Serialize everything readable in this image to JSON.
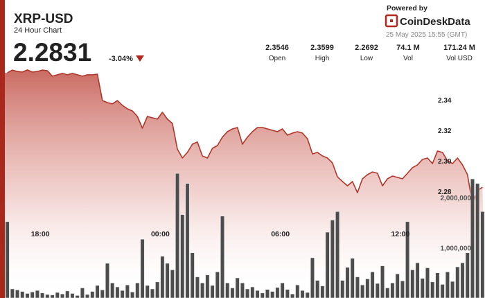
{
  "header": {
    "symbol": "XRP-USD",
    "subtitle": "24 Hour Chart",
    "price": "2.2831",
    "change": "-3.04%",
    "powered_by": "Powered by",
    "brand": "CoinDeskData",
    "timestamp": "25 May 2025 15:55 (GMT)",
    "stats": [
      {
        "value": "2.3546",
        "label": "Open"
      },
      {
        "value": "2.3599",
        "label": "High"
      },
      {
        "value": "2.2692",
        "label": "Low"
      },
      {
        "value": "74.1 M",
        "label": "Vol"
      },
      {
        "value": "171.24 M",
        "label": "Vol USD"
      }
    ]
  },
  "chart_data": {
    "type": "line",
    "categories": [
      null,
      null,
      null,
      null,
      null,
      null,
      null,
      "18:00",
      null,
      null,
      null,
      null,
      null,
      null,
      null,
      null,
      null,
      null,
      null,
      null,
      null,
      null,
      null,
      null,
      null,
      null,
      null,
      null,
      null,
      null,
      null,
      "00:00",
      null,
      null,
      null,
      null,
      null,
      null,
      null,
      null,
      null,
      null,
      null,
      null,
      null,
      null,
      null,
      null,
      null,
      null,
      null,
      null,
      null,
      null,
      null,
      "06:00",
      null,
      null,
      null,
      null,
      null,
      null,
      null,
      null,
      null,
      null,
      null,
      null,
      null,
      null,
      null,
      null,
      null,
      null,
      null,
      null,
      null,
      null,
      null,
      "12:00",
      null,
      null,
      null,
      null,
      null,
      null,
      null,
      null,
      null,
      null,
      null,
      null,
      null,
      null,
      null,
      null
    ],
    "series": [
      {
        "type": "area",
        "color": "#b0352a",
        "values": [
          2.3577,
          2.3595,
          2.3586,
          2.3582,
          2.3596,
          2.3582,
          2.3586,
          2.3595,
          2.3591,
          2.3555,
          2.3564,
          2.3573,
          2.3564,
          2.3573,
          2.3564,
          2.3555,
          2.3564,
          2.3564,
          2.3568,
          2.3395,
          2.3382,
          2.3373,
          2.3395,
          2.3364,
          2.3341,
          2.3327,
          2.3291,
          2.3214,
          2.3291,
          2.3282,
          2.3273,
          2.3318,
          2.3273,
          2.3245,
          2.3077,
          2.3018,
          2.3055,
          2.3109,
          2.3123,
          2.3032,
          2.3018,
          2.3082,
          2.31,
          2.3155,
          2.3191,
          2.3209,
          2.3218,
          2.3109,
          2.3155,
          2.3191,
          2.3218,
          2.3218,
          2.3209,
          2.32,
          2.3191,
          2.3209,
          2.3168,
          2.3182,
          2.3191,
          2.3182,
          2.3145,
          2.3045,
          2.3055,
          2.3032,
          2.3018,
          2.2986,
          2.2895,
          2.2864,
          2.2836,
          2.2864,
          2.2791,
          2.2882,
          2.2909,
          2.2927,
          2.2918,
          2.2836,
          2.2882,
          2.29,
          2.2891,
          2.2882,
          2.2918,
          2.2955,
          2.2973,
          2.3009,
          2.3018,
          2.2982,
          2.3064,
          2.3055,
          2.3,
          2.2982,
          2.3018,
          2.2973,
          2.2909,
          2.2714,
          2.2805,
          2.2827
        ]
      },
      {
        "type": "bar",
        "axis": "y2",
        "color": "#4d4d4d",
        "values": [
          1520000,
          180000,
          160000,
          130000,
          90000,
          120000,
          150000,
          100000,
          70000,
          60000,
          110000,
          80000,
          140000,
          90000,
          50000,
          200000,
          70000,
          130000,
          250000,
          160000,
          690000,
          300000,
          220000,
          150000,
          260000,
          120000,
          300000,
          1170000,
          250000,
          180000,
          320000,
          830000,
          690000,
          560000,
          2480000,
          1660000,
          2280000,
          900000,
          420000,
          300000,
          460000,
          250000,
          520000,
          1630000,
          300000,
          200000,
          400000,
          300000,
          180000,
          220000,
          150000,
          100000,
          170000,
          130000,
          210000,
          300000,
          170000,
          80000,
          260000,
          150000,
          110000,
          800000,
          350000,
          240000,
          1310000,
          1550000,
          1720000,
          350000,
          610000,
          790000,
          420000,
          260000,
          380000,
          520000,
          290000,
          640000,
          200000,
          300000,
          480000,
          340000,
          1520000,
          560000,
          700000,
          390000,
          600000,
          320000,
          500000,
          270000,
          520000,
          330000,
          620000,
          700000,
          900000,
          2370000,
          2280000,
          1720000
        ]
      }
    ],
    "ylim": [
      2.21,
      2.36
    ],
    "yticks": [
      2.28,
      {
        "value": 2.3,
        "label": "2.30"
      },
      2.32,
      2.34
    ],
    "y2lim": [
      0,
      4000000
    ],
    "y2ticks": [
      {
        "value": 1000000,
        "label": "1,000,000"
      },
      {
        "value": 2000000,
        "label": "2,000,000"
      }
    ],
    "grid": false
  }
}
